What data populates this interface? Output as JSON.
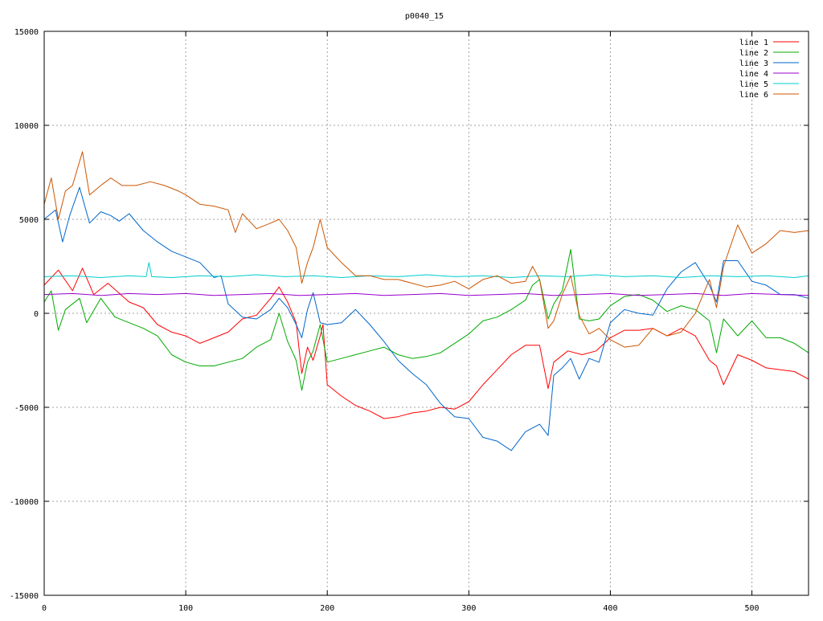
{
  "chart_data": {
    "type": "line",
    "title": "p0040_15",
    "xlabel": "",
    "ylabel": "",
    "xlim": [
      0,
      540
    ],
    "ylim": [
      -15000,
      15000
    ],
    "x_ticks": [
      0,
      100,
      200,
      300,
      400,
      500
    ],
    "y_ticks": [
      -15000,
      -10000,
      -5000,
      0,
      5000,
      10000,
      15000
    ],
    "x_tick_labels": [
      "0",
      "100",
      "200",
      "300",
      "400",
      "500"
    ],
    "y_tick_labels": [
      "-15000",
      "-10000",
      "-5000",
      "0",
      "5000",
      "10000",
      "15000"
    ],
    "grid": true,
    "legend_position": "top-right",
    "series": [
      {
        "name": "line 1",
        "color": "#ff0000",
        "x": [
          0,
          10,
          20,
          27,
          35,
          45,
          60,
          70,
          80,
          90,
          100,
          110,
          120,
          130,
          140,
          150,
          160,
          166,
          172,
          178,
          182,
          186,
          190,
          195,
          197,
          200,
          210,
          220,
          230,
          240,
          250,
          260,
          270,
          280,
          290,
          300,
          310,
          320,
          330,
          340,
          350,
          356,
          360,
          370,
          380,
          390,
          400,
          410,
          420,
          430,
          440,
          450,
          460,
          470,
          475,
          480,
          490,
          500,
          510,
          520,
          530,
          540
        ],
        "y": [
          1500,
          2300,
          1200,
          2400,
          1000,
          1600,
          600,
          300,
          -600,
          -1000,
          -1200,
          -1600,
          -1300,
          -1000,
          -300,
          -100,
          800,
          1400,
          600,
          -500,
          -3200,
          -1800,
          -2500,
          -1200,
          -600,
          -3800,
          -4400,
          -4900,
          -5200,
          -5600,
          -5500,
          -5300,
          -5200,
          -5000,
          -5100,
          -4700,
          -3800,
          -3000,
          -2200,
          -1700,
          -1700,
          -4000,
          -2600,
          -2000,
          -2200,
          -2000,
          -1300,
          -900,
          -900,
          -800,
          -1200,
          -800,
          -1200,
          -2500,
          -2800,
          -3800,
          -2200,
          -2500,
          -2900,
          -3000,
          -3100,
          -3500
        ]
      },
      {
        "name": "line 2",
        "color": "#00aa00",
        "x": [
          0,
          5,
          10,
          15,
          20,
          25,
          30,
          40,
          50,
          60,
          70,
          80,
          90,
          100,
          110,
          120,
          130,
          140,
          150,
          160,
          166,
          172,
          178,
          182,
          186,
          190,
          195,
          200,
          210,
          220,
          230,
          240,
          250,
          260,
          270,
          280,
          290,
          300,
          310,
          320,
          330,
          340,
          345,
          350,
          356,
          360,
          366,
          372,
          378,
          385,
          392,
          400,
          410,
          420,
          430,
          440,
          450,
          460,
          470,
          475,
          480,
          490,
          500,
          510,
          520,
          530,
          540
        ],
        "y": [
          600,
          1200,
          -900,
          200,
          500,
          800,
          -500,
          800,
          -200,
          -500,
          -800,
          -1200,
          -2200,
          -2600,
          -2800,
          -2800,
          -2600,
          -2400,
          -1800,
          -1400,
          0,
          -1500,
          -2500,
          -4100,
          -2600,
          -2000,
          -600,
          -2600,
          -2400,
          -2200,
          -2000,
          -1800,
          -2200,
          -2400,
          -2300,
          -2100,
          -1600,
          -1100,
          -400,
          -200,
          200,
          700,
          1500,
          1800,
          -300,
          500,
          1200,
          3400,
          -300,
          -400,
          -300,
          400,
          900,
          1000,
          700,
          100,
          400,
          200,
          -400,
          -2100,
          -300,
          -1200,
          -400,
          -1300,
          -1300,
          -1600,
          -2100
        ]
      },
      {
        "name": "line 3",
        "color": "#0066cc",
        "x": [
          0,
          8,
          13,
          18,
          25,
          32,
          40,
          47,
          53,
          60,
          70,
          80,
          90,
          100,
          110,
          120,
          125,
          130,
          140,
          150,
          160,
          166,
          172,
          178,
          182,
          186,
          190,
          195,
          200,
          210,
          220,
          230,
          240,
          250,
          260,
          270,
          280,
          290,
          300,
          310,
          320,
          330,
          340,
          350,
          356,
          360,
          366,
          372,
          378,
          385,
          392,
          400,
          410,
          420,
          430,
          440,
          450,
          460,
          470,
          475,
          480,
          490,
          500,
          510,
          520,
          530,
          540
        ],
        "y": [
          5000,
          5500,
          3800,
          5200,
          6700,
          4800,
          5400,
          5200,
          4900,
          5300,
          4400,
          3800,
          3300,
          3000,
          2700,
          1900,
          2000,
          500,
          -200,
          -300,
          200,
          800,
          300,
          -600,
          -1300,
          200,
          1100,
          -500,
          -600,
          -500,
          200,
          -600,
          -1500,
          -2500,
          -3200,
          -3800,
          -4800,
          -5500,
          -5600,
          -6600,
          -6800,
          -7300,
          -6300,
          -5900,
          -6500,
          -3300,
          -2900,
          -2400,
          -3500,
          -2400,
          -2600,
          -500,
          200,
          0,
          -100,
          1300,
          2200,
          2700,
          1500,
          600,
          2800,
          2800,
          1700,
          1500,
          1000,
          1000,
          800
        ]
      },
      {
        "name": "line 4",
        "color": "#9900cc",
        "x": [
          0,
          20,
          40,
          60,
          80,
          100,
          120,
          140,
          160,
          180,
          200,
          220,
          240,
          260,
          280,
          300,
          320,
          340,
          360,
          380,
          400,
          420,
          440,
          460,
          480,
          500,
          520,
          540
        ],
        "y": [
          1000,
          1050,
          950,
          1050,
          1000,
          1050,
          950,
          1000,
          1050,
          950,
          1000,
          1050,
          950,
          1000,
          1050,
          950,
          1000,
          1050,
          950,
          1000,
          1050,
          950,
          1000,
          1050,
          950,
          1050,
          1000,
          950
        ]
      },
      {
        "name": "line 5",
        "color": "#00cccc",
        "x": [
          0,
          20,
          40,
          60,
          72,
          74,
          76,
          90,
          110,
          130,
          150,
          170,
          190,
          210,
          230,
          250,
          270,
          290,
          310,
          330,
          350,
          370,
          390,
          410,
          430,
          450,
          470,
          490,
          510,
          530,
          540
        ],
        "y": [
          1950,
          2000,
          1900,
          2000,
          1950,
          2700,
          1950,
          1900,
          2000,
          1950,
          2050,
          1950,
          2000,
          1900,
          2000,
          1950,
          2050,
          1950,
          2000,
          1900,
          2000,
          1950,
          2050,
          1950,
          2000,
          1900,
          2000,
          1950,
          2000,
          1900,
          2000
        ]
      },
      {
        "name": "line 6",
        "color": "#cc5500",
        "x": [
          0,
          5,
          10,
          15,
          20,
          27,
          32,
          40,
          47,
          55,
          65,
          75,
          85,
          95,
          100,
          110,
          120,
          130,
          135,
          140,
          150,
          160,
          166,
          172,
          178,
          182,
          186,
          190,
          195,
          200,
          210,
          220,
          230,
          240,
          250,
          260,
          270,
          280,
          290,
          300,
          310,
          320,
          330,
          340,
          345,
          350,
          356,
          360,
          366,
          372,
          378,
          385,
          392,
          400,
          410,
          420,
          430,
          440,
          450,
          460,
          470,
          475,
          480,
          490,
          500,
          510,
          520,
          530,
          540
        ],
        "y": [
          5800,
          7200,
          5000,
          6500,
          6800,
          8600,
          6300,
          6800,
          7200,
          6800,
          6800,
          7000,
          6800,
          6500,
          6300,
          5800,
          5700,
          5500,
          4300,
          5300,
          4500,
          4800,
          5000,
          4400,
          3500,
          1600,
          2700,
          3500,
          5000,
          3500,
          2700,
          2000,
          2000,
          1800,
          1800,
          1600,
          1400,
          1500,
          1700,
          1300,
          1800,
          2000,
          1600,
          1700,
          2500,
          1800,
          -800,
          -400,
          1000,
          2000,
          -100,
          -1100,
          -800,
          -1400,
          -1800,
          -1700,
          -800,
          -1200,
          -1000,
          0,
          1800,
          300,
          2500,
          4700,
          3200,
          3700,
          4400,
          4300,
          4400
        ]
      }
    ]
  }
}
